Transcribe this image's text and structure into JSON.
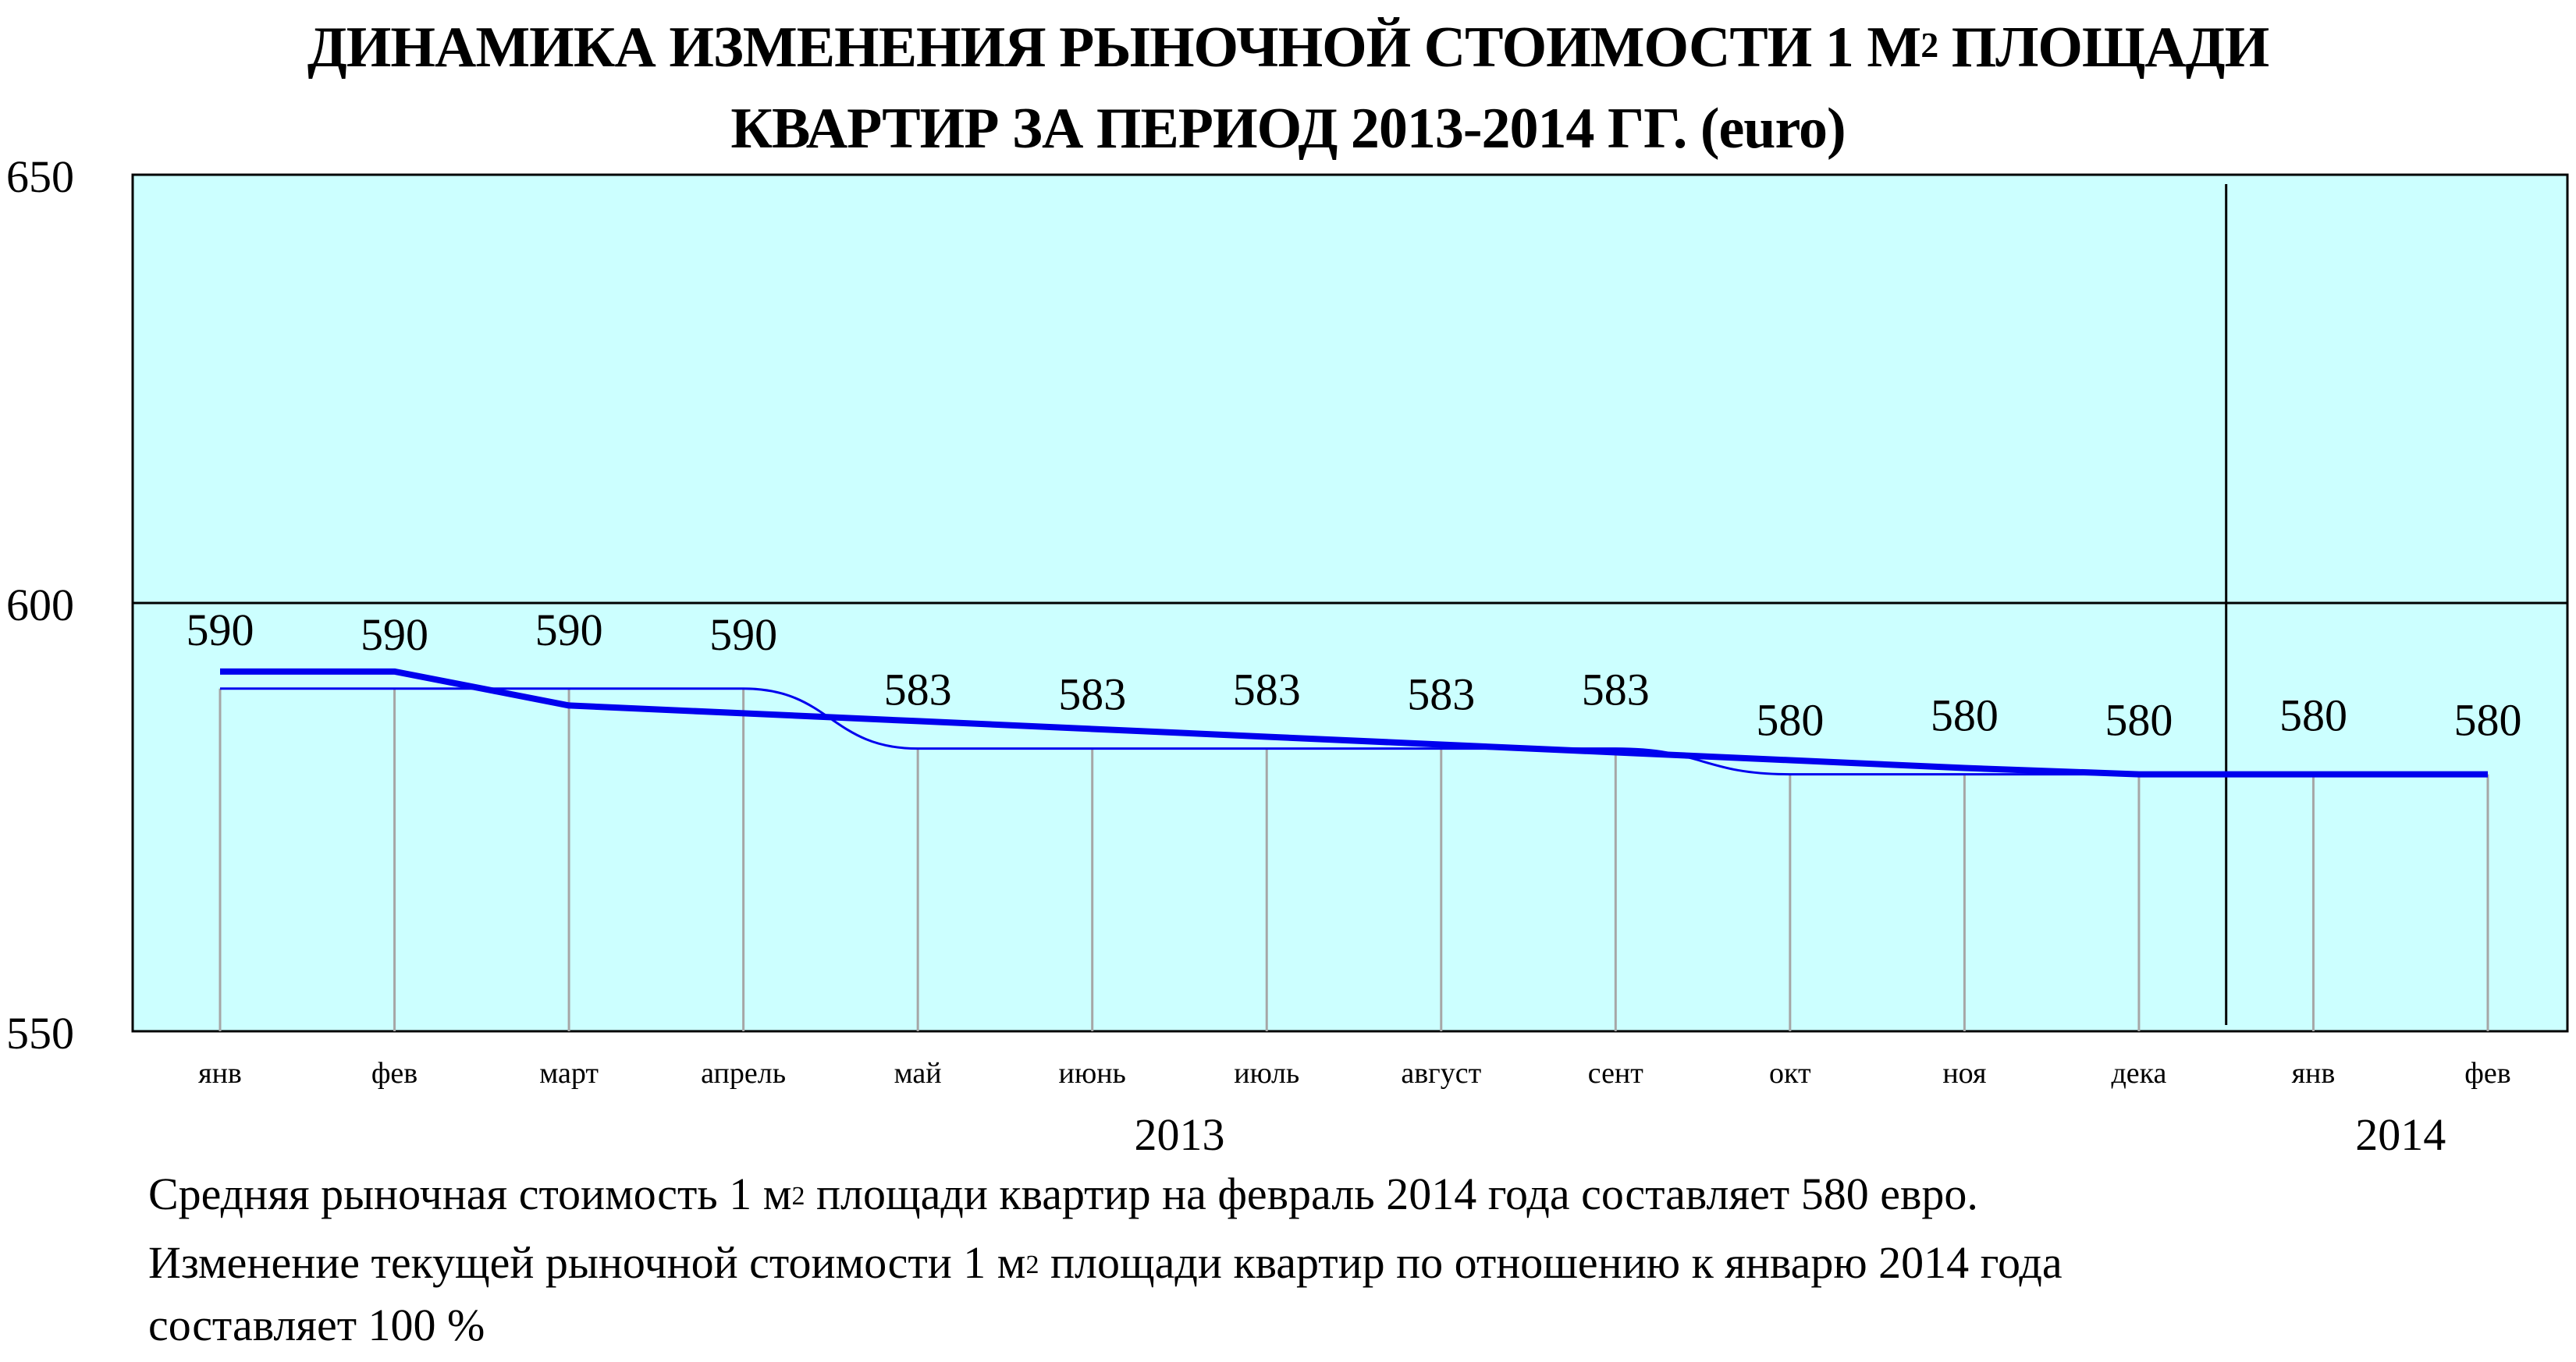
{
  "title": {
    "line1_a": "ДИНАМИКА ИЗМЕНЕНИЯ РЫНОЧНОЙ СТОИМОСТИ 1 М",
    "line1_sup": "2",
    "line1_b": " ПЛОЩАДИ",
    "line2": "КВАРТИР ЗА ПЕРИОД 2013-2014 ГГ. (euro)"
  },
  "colors": {
    "plot_background": "#ccffff",
    "series_line": "#0000ee",
    "drop_lines": "#a6a6a6",
    "grid": "#000000"
  },
  "chart_data": {
    "type": "line",
    "categories": [
      "янв",
      "фев",
      "март",
      "апрель",
      "май",
      "июнь",
      "июль",
      "август",
      "сент",
      "окт",
      "ноя",
      "дека",
      "янв",
      "фев"
    ],
    "series": [
      {
        "values": [
          590,
          590,
          590,
          590,
          583,
          583,
          583,
          583,
          583,
          580,
          580,
          580,
          580,
          580
        ]
      }
    ],
    "data_labels": [
      "590",
      "590",
      "590",
      "590",
      "583",
      "583",
      "583",
      "583",
      "583",
      "580",
      "580",
      "580",
      "580",
      "580"
    ],
    "year_groups": [
      {
        "label": "2013",
        "from_index": 0,
        "to_index": 11
      },
      {
        "label": "2014",
        "from_index": 12,
        "to_index": 13
      }
    ],
    "y_ticks": [
      "650",
      "600",
      "550"
    ],
    "ylim": [
      550,
      650
    ],
    "grid": "horizontal at 600",
    "legend": "none"
  },
  "footer": {
    "line1_a": "Средняя рыночная стоимость 1 м",
    "line1_sup": "2",
    "line1_b": " площади квартир на февраль 2014 года составляет 580 евро.",
    "line2_a": "Изменение текущей рыночной стоимости 1 м",
    "line2_sup": "2",
    "line2_b": " площади квартир по отношению к январю 2014 года",
    "line3": "составляет  100 %"
  }
}
